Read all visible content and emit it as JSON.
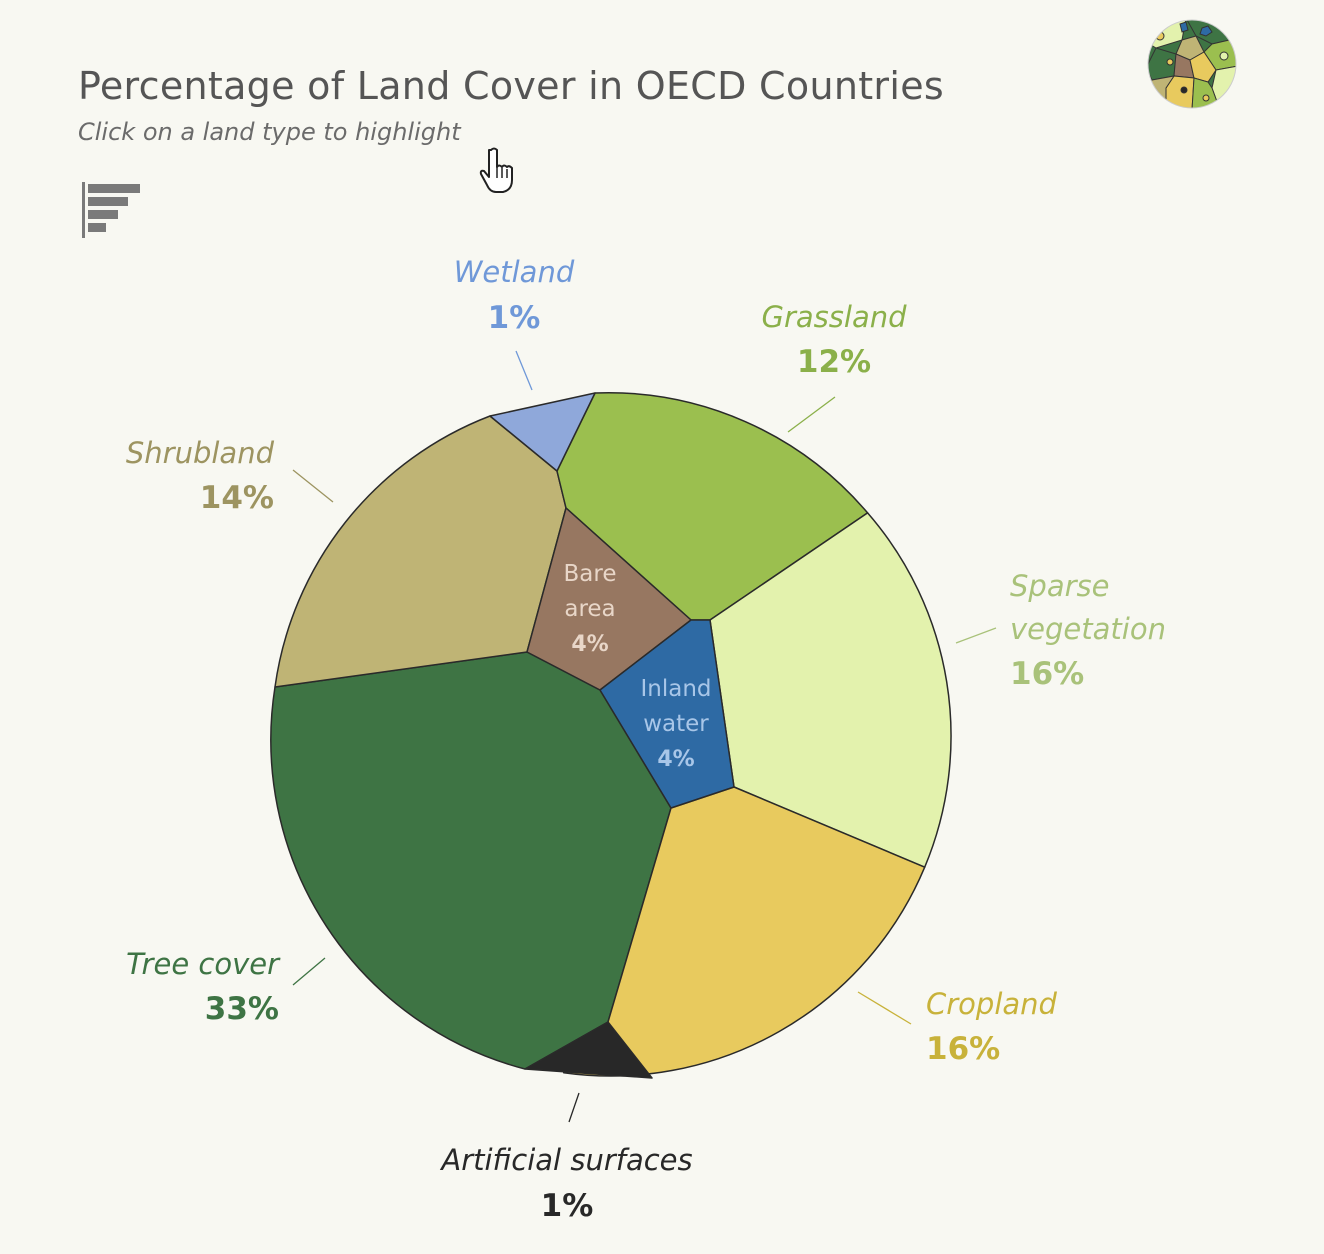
{
  "header": {
    "title": "Percentage of Land Cover in OECD Countries",
    "subtitle": "Click on a land type to highlight"
  },
  "icons": {
    "sort": "sort-descending-icon",
    "cursor": "hand-pointer-icon",
    "logo": "land-cover-mosaic-logo-icon"
  },
  "chart_data": {
    "type": "voronoi-pie",
    "title": "Percentage of Land Cover in OECD Countries",
    "subtitle": "Click on a land type to highlight",
    "unit": "%",
    "categories": [
      {
        "name": "Tree cover",
        "value_label": "33%",
        "value": 33,
        "color": "#3e7444",
        "label_color": "#3e7444"
      },
      {
        "name": "Sparse vegetation",
        "value_label": "16%",
        "value": 16,
        "color": "#e3f2ad",
        "label_color": "#a9c27a"
      },
      {
        "name": "Cropland",
        "value_label": "16%",
        "value": 16,
        "color": "#e8ca5e",
        "label_color": "#c8b23a"
      },
      {
        "name": "Shrubland",
        "value_label": "14%",
        "value": 14,
        "color": "#bfb475",
        "label_color": "#9d9461"
      },
      {
        "name": "Grassland",
        "value_label": "12%",
        "value": 12,
        "color": "#9bbf4f",
        "label_color": "#8bb04a"
      },
      {
        "name": "Bare area",
        "value_label": "4%",
        "value": 4,
        "color": "#977761",
        "label_color": "#e8d6c8"
      },
      {
        "name": "Inland water",
        "value_label": "4%",
        "value": 4,
        "color": "#2e6aa4",
        "label_color": "#a8c6e8"
      },
      {
        "name": "Wetland",
        "value_label": "1%",
        "value": 1,
        "color": "#8fa8da",
        "label_color": "#6f98d8"
      },
      {
        "name": "Artificial surfaces",
        "value_label": "1%",
        "value": 1,
        "color": "#282828",
        "label_color": "#282828"
      }
    ]
  }
}
